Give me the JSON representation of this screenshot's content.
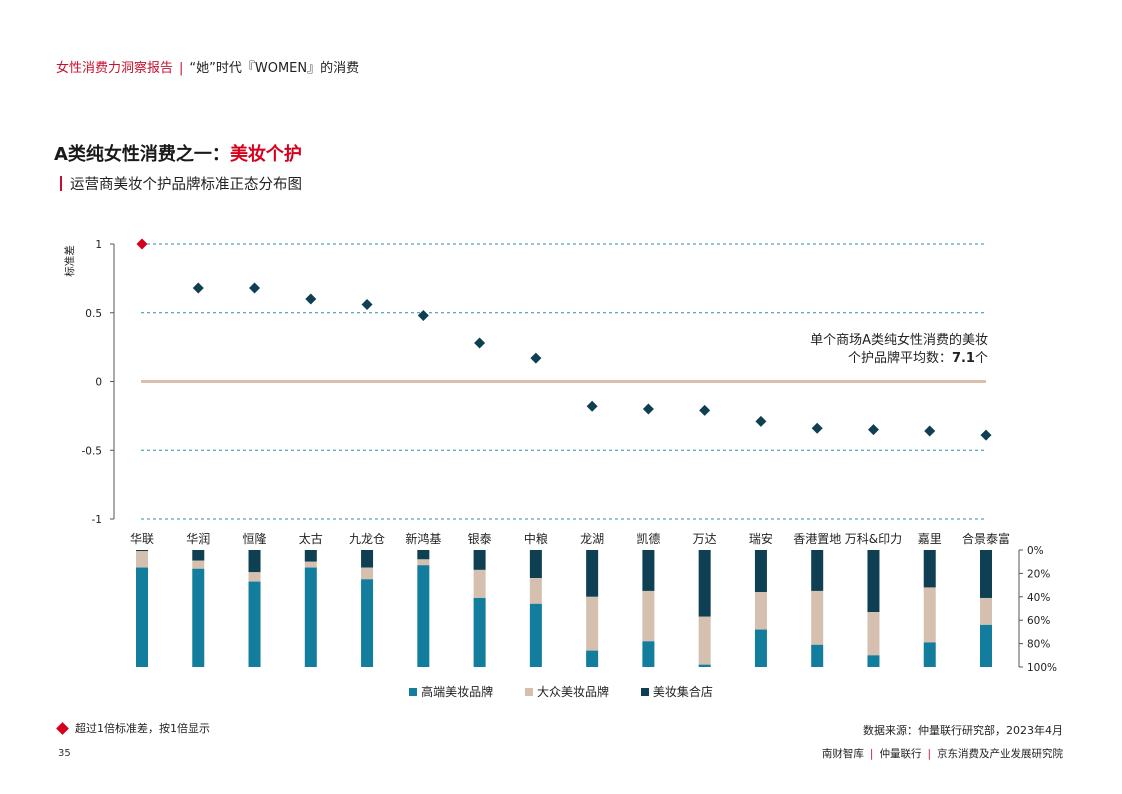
{
  "header": {
    "report_name": "女性消费力洞察报告",
    "separator": "|",
    "report_sub": "“她”时代『WOMEN』的消费"
  },
  "title": {
    "prefix": "A类纯女性消费之一：",
    "highlight": "美妆个护"
  },
  "subtitle": "运营商美妆个护品牌标准正态分布图",
  "annotation": {
    "line1": "单个商场A类纯女性消费的美妆",
    "line2_prefix": "个护品牌平均数：",
    "value": "7.1",
    "line2_suffix": "个"
  },
  "legend_items": [
    "高端美妆品牌",
    "大众美妆品牌",
    "美妆集合店"
  ],
  "footnote": "超过1倍标准差，按1倍显示",
  "source": "数据来源：仲量联行研究部，2023年4月",
  "page_number": "35",
  "footer": {
    "org1": "南财智库",
    "org2": "仲量联行",
    "org3": "京东消费及产业发展研究院"
  },
  "colors": {
    "high_end": "#137d9e",
    "mass": "#d5bfaf",
    "store": "#0e3f52",
    "outlier": "#d6001c",
    "zero_line": "#d8bfae",
    "grid": "#2f8ea8",
    "accent": "#c8102e"
  },
  "chart_data": [
    {
      "type": "scatter",
      "ylabel": "标准差",
      "ylim": [
        -1,
        1
      ],
      "yticks": [
        "1",
        "0.5",
        "0",
        "-0.5",
        "-1"
      ],
      "ytick_values": [
        1,
        0.5,
        0,
        -0.5,
        -1
      ],
      "grid": "dashed horizontal",
      "categories": [
        "华联",
        "华润",
        "恒隆",
        "太古",
        "九龙仓",
        "新鸿基",
        "银泰",
        "中粮",
        "龙湖",
        "凯德",
        "万达",
        "瑞安",
        "香港置地",
        "万科&印力",
        "嘉里",
        "合景泰富"
      ],
      "values": [
        1.0,
        0.68,
        0.68,
        0.6,
        0.56,
        0.48,
        0.28,
        0.17,
        -0.18,
        -0.2,
        -0.21,
        -0.29,
        -0.34,
        -0.35,
        -0.36,
        -0.39
      ],
      "outliers": [
        "华联"
      ]
    },
    {
      "type": "bar",
      "stacked": true,
      "percent": true,
      "yticks": [
        "0%",
        "20%",
        "40%",
        "60%",
        "80%",
        "100%"
      ],
      "categories": [
        "华联",
        "华润",
        "恒隆",
        "太古",
        "九龙仓",
        "新鸿基",
        "银泰",
        "中粮",
        "龙湖",
        "凯德",
        "万达",
        "瑞安",
        "香港置地",
        "万科&印力",
        "嘉里",
        "合景泰富"
      ],
      "series": [
        {
          "name": "美妆集合店",
          "values": [
            1,
            9,
            19,
            10,
            15,
            8,
            17,
            24,
            40,
            35,
            57,
            36,
            35,
            53,
            32,
            41
          ]
        },
        {
          "name": "大众美妆品牌",
          "values": [
            14,
            7,
            8,
            5,
            10,
            5,
            24,
            22,
            46,
            43,
            41,
            32,
            46,
            37,
            47,
            23
          ]
        },
        {
          "name": "高端美妆品牌",
          "values": [
            85,
            84,
            73,
            85,
            75,
            87,
            59,
            54,
            14,
            22,
            2,
            32,
            19,
            10,
            21,
            36
          ]
        }
      ]
    }
  ]
}
